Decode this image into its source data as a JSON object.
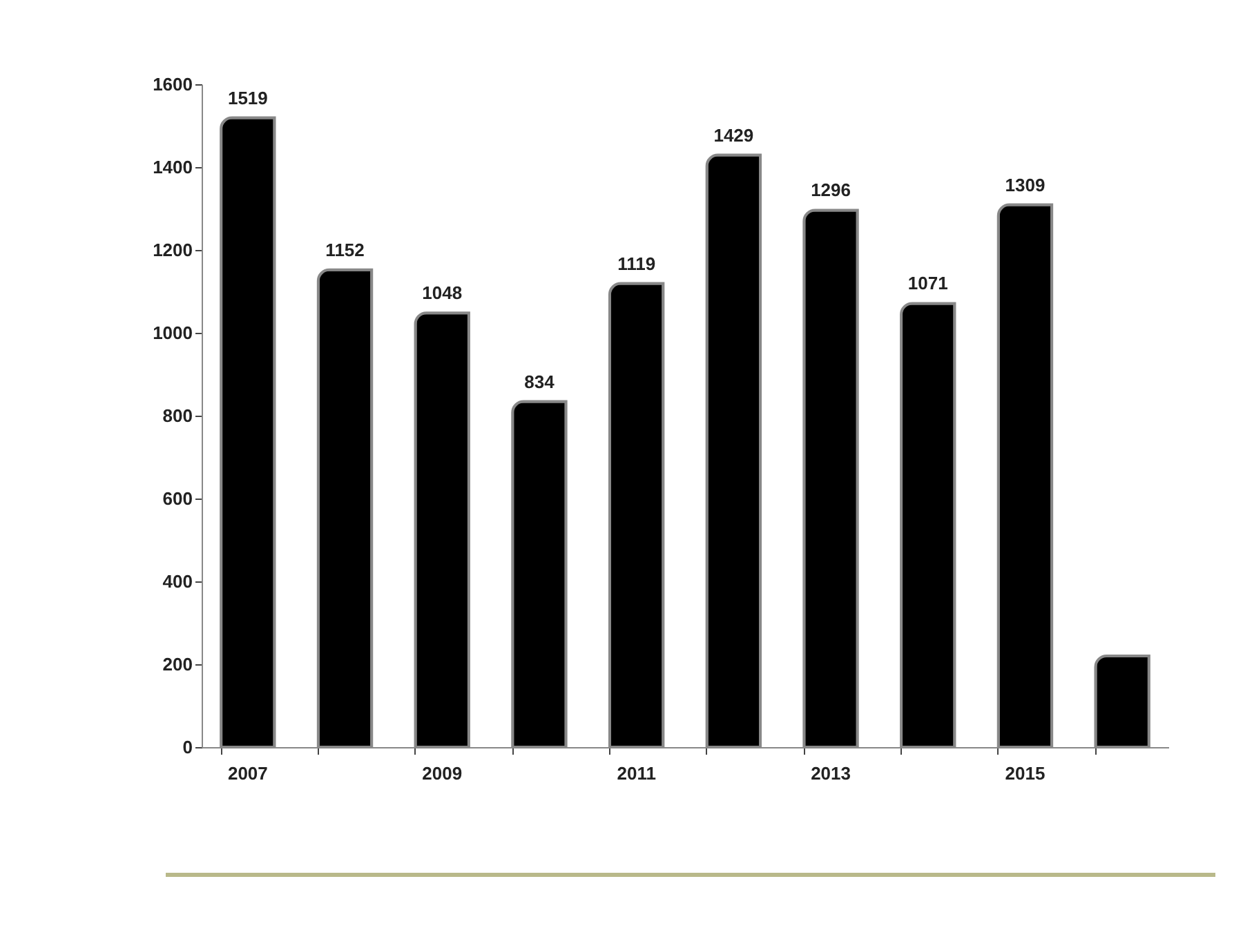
{
  "chart_data": {
    "type": "bar",
    "categories": [
      "2007",
      null,
      "2009",
      null,
      "2011",
      null,
      "2013",
      null,
      "2015",
      null
    ],
    "values": [
      1519,
      1152,
      1048,
      834,
      1119,
      1429,
      1296,
      1071,
      1309,
      220
    ],
    "value_labels": [
      "1519",
      "1152",
      "1048",
      "834",
      "1119",
      "1429",
      "1296",
      "1071",
      "1309",
      null
    ],
    "color": "#000000",
    "ylim": [
      0,
      1600
    ],
    "yticks": [
      0,
      200,
      400,
      600,
      800,
      1000,
      1200,
      1400,
      1600
    ],
    "grid": false
  }
}
